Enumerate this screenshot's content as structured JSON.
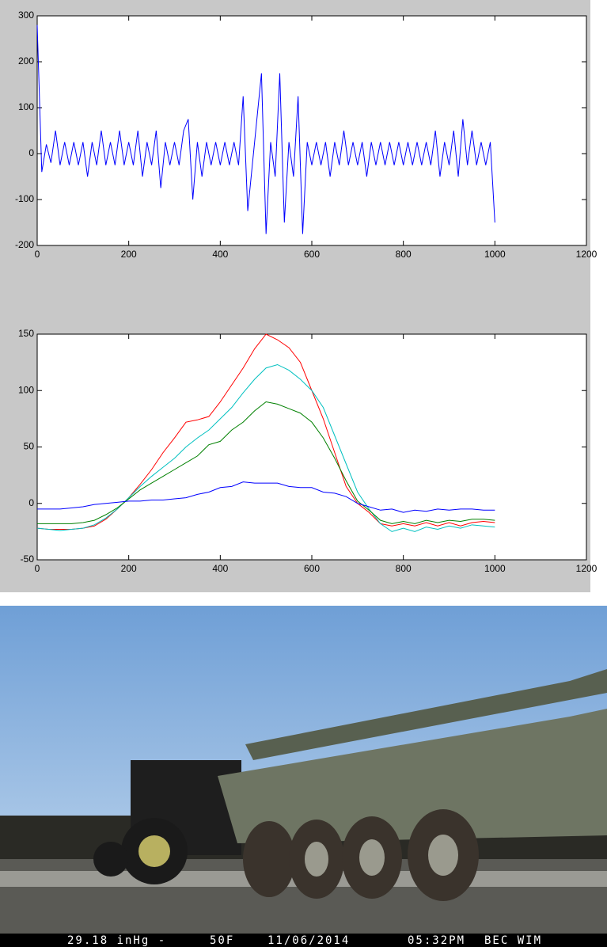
{
  "chart_data": [
    {
      "type": "line",
      "x": [
        0,
        10,
        20,
        30,
        40,
        50,
        60,
        70,
        80,
        90,
        100,
        110,
        120,
        130,
        140,
        150,
        160,
        170,
        180,
        190,
        200,
        210,
        220,
        230,
        240,
        250,
        260,
        270,
        280,
        290,
        300,
        310,
        320,
        330,
        340,
        350,
        360,
        370,
        380,
        390,
        400,
        410,
        420,
        430,
        440,
        450,
        460,
        470,
        480,
        490,
        500,
        510,
        520,
        530,
        540,
        550,
        560,
        570,
        580,
        590,
        600,
        610,
        620,
        630,
        640,
        650,
        660,
        670,
        680,
        690,
        700,
        710,
        720,
        730,
        740,
        750,
        760,
        770,
        780,
        790,
        800,
        810,
        820,
        830,
        840,
        850,
        860,
        870,
        880,
        890,
        900,
        910,
        920,
        930,
        940,
        950,
        960,
        970,
        980,
        990,
        1000
      ],
      "series": [
        {
          "color": "#0000ff",
          "values": [
            280,
            -40,
            20,
            -20,
            50,
            -25,
            25,
            -25,
            25,
            -25,
            25,
            -50,
            25,
            -25,
            50,
            -25,
            25,
            -25,
            50,
            -25,
            25,
            -25,
            50,
            -50,
            25,
            -25,
            50,
            -75,
            25,
            -25,
            25,
            -25,
            50,
            75,
            -100,
            25,
            -50,
            25,
            -25,
            25,
            -25,
            25,
            -25,
            25,
            -25,
            125,
            -125,
            -25,
            75,
            175,
            -175,
            25,
            -50,
            175,
            -150,
            25,
            -50,
            125,
            -175,
            25,
            -25,
            25,
            -25,
            25,
            -50,
            25,
            -25,
            50,
            -25,
            25,
            -25,
            25,
            -50,
            25,
            -25,
            25,
            -25,
            25,
            -25,
            25,
            -25,
            25,
            -25,
            25,
            -25,
            25,
            -25,
            50,
            -50,
            25,
            -25,
            50,
            -50,
            75,
            -25,
            50,
            -25,
            25,
            -25,
            25,
            -150
          ]
        }
      ],
      "xlim": [
        0,
        1200
      ],
      "xticks": [
        0,
        200,
        400,
        600,
        800,
        1000,
        1200
      ],
      "ylim": [
        -200,
        300
      ],
      "yticks": [
        -200,
        -100,
        0,
        100,
        200,
        300
      ]
    },
    {
      "type": "line",
      "x": [
        0,
        25,
        50,
        75,
        100,
        125,
        150,
        175,
        200,
        225,
        250,
        275,
        300,
        325,
        350,
        375,
        400,
        425,
        450,
        475,
        500,
        525,
        550,
        575,
        600,
        625,
        650,
        675,
        700,
        725,
        750,
        775,
        800,
        825,
        850,
        875,
        900,
        925,
        950,
        975,
        1000
      ],
      "series": [
        {
          "color": "#ff0000",
          "values": [
            -22,
            -23,
            -23,
            -23,
            -22,
            -20,
            -14,
            -5,
            5,
            17,
            30,
            45,
            58,
            72,
            74,
            77,
            90,
            105,
            120,
            137,
            150,
            145,
            138,
            125,
            100,
            75,
            45,
            15,
            0,
            -8,
            -18,
            -20,
            -18,
            -20,
            -17,
            -20,
            -17,
            -20,
            -17,
            -16,
            -17
          ]
        },
        {
          "color": "#00c0c0",
          "values": [
            -22,
            -23,
            -24,
            -23,
            -22,
            -19,
            -13,
            -5,
            5,
            15,
            24,
            32,
            40,
            50,
            58,
            65,
            75,
            85,
            98,
            110,
            120,
            123,
            118,
            110,
            100,
            85,
            60,
            35,
            10,
            -5,
            -18,
            -25,
            -22,
            -25,
            -21,
            -23,
            -20,
            -22,
            -19,
            -20,
            -21
          ]
        },
        {
          "color": "#008000",
          "values": [
            -18,
            -18,
            -18,
            -18,
            -17,
            -15,
            -10,
            -4,
            4,
            12,
            18,
            24,
            30,
            36,
            42,
            52,
            55,
            65,
            72,
            82,
            90,
            88,
            84,
            80,
            72,
            58,
            40,
            20,
            2,
            -6,
            -15,
            -18,
            -16,
            -18,
            -15,
            -17,
            -15,
            -16,
            -14,
            -14,
            -15
          ]
        },
        {
          "color": "#0000ff",
          "values": [
            -5,
            -5,
            -5,
            -4,
            -3,
            -1,
            0,
            1,
            2,
            2,
            3,
            3,
            4,
            5,
            8,
            10,
            14,
            15,
            19,
            18,
            18,
            18,
            15,
            14,
            14,
            10,
            9,
            6,
            0,
            -3,
            -6,
            -5,
            -8,
            -6,
            -7,
            -5,
            -6,
            -5,
            -5,
            -6,
            -6
          ]
        }
      ],
      "xlim": [
        0,
        1200
      ],
      "xticks": [
        0,
        200,
        400,
        600,
        800,
        1000,
        1200
      ],
      "ylim": [
        -50,
        150
      ],
      "yticks": [
        -50,
        0,
        50,
        100,
        150
      ]
    }
  ],
  "photo": {
    "caption": [
      "29.18 inHg -",
      "50F",
      "11/06/2014",
      "05:32PM",
      "BEC WIM"
    ]
  }
}
